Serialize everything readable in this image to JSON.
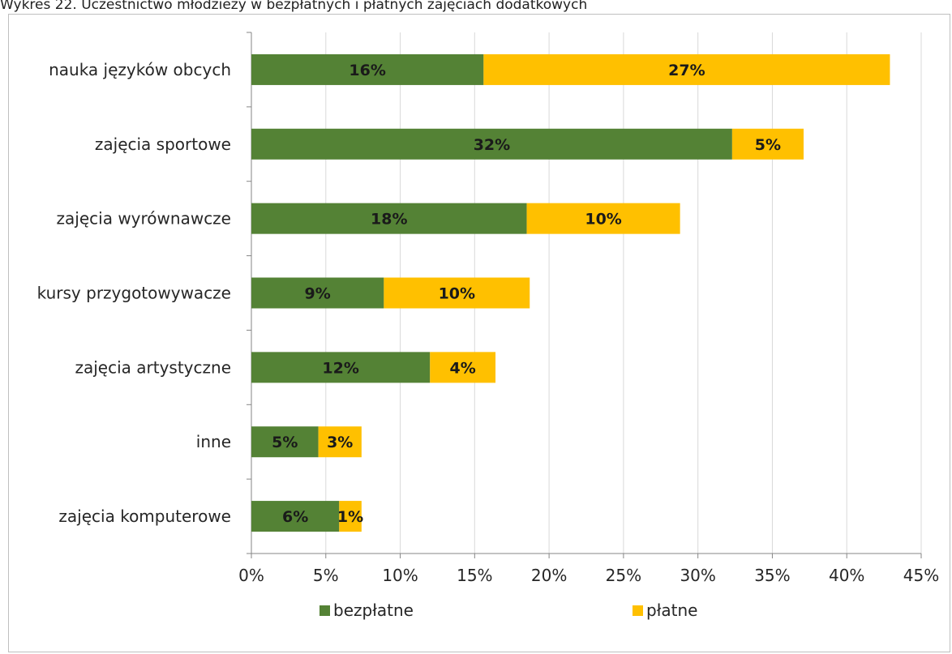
{
  "caption": "Wykres 22. Uczestnictwo młodzieży w bezpłatnych i płatnych zajęciach dodatkowych",
  "chart_data": {
    "type": "bar",
    "orientation": "horizontal",
    "stacked": true,
    "categories": [
      "nauka języków obcych",
      "zajęcia sportowe",
      "zajęcia wyrównawcze",
      "kursy przygotowywacze",
      "zajęcia artystyczne",
      "inne",
      "zajęcia komputerowe"
    ],
    "series": [
      {
        "name": "bezpłatne",
        "color": "#548235",
        "values": [
          15.6,
          32.3,
          18.5,
          8.9,
          12.0,
          4.5,
          5.9
        ],
        "labels": [
          "16%",
          "32%",
          "18%",
          "9%",
          "12%",
          "5%",
          "6%"
        ]
      },
      {
        "name": "płatne",
        "color": "#FFC000",
        "values": [
          27.3,
          4.8,
          10.3,
          9.8,
          4.4,
          2.9,
          1.5
        ],
        "labels": [
          "27%",
          "5%",
          "10%",
          "10%",
          "4%",
          "3%",
          "1%"
        ]
      }
    ],
    "xlim": [
      0,
      45
    ],
    "xticks": [
      "0%",
      "5%",
      "10%",
      "15%",
      "20%",
      "25%",
      "30%",
      "35%",
      "40%",
      "45%"
    ],
    "grid": true,
    "legend_position": "bottom"
  }
}
